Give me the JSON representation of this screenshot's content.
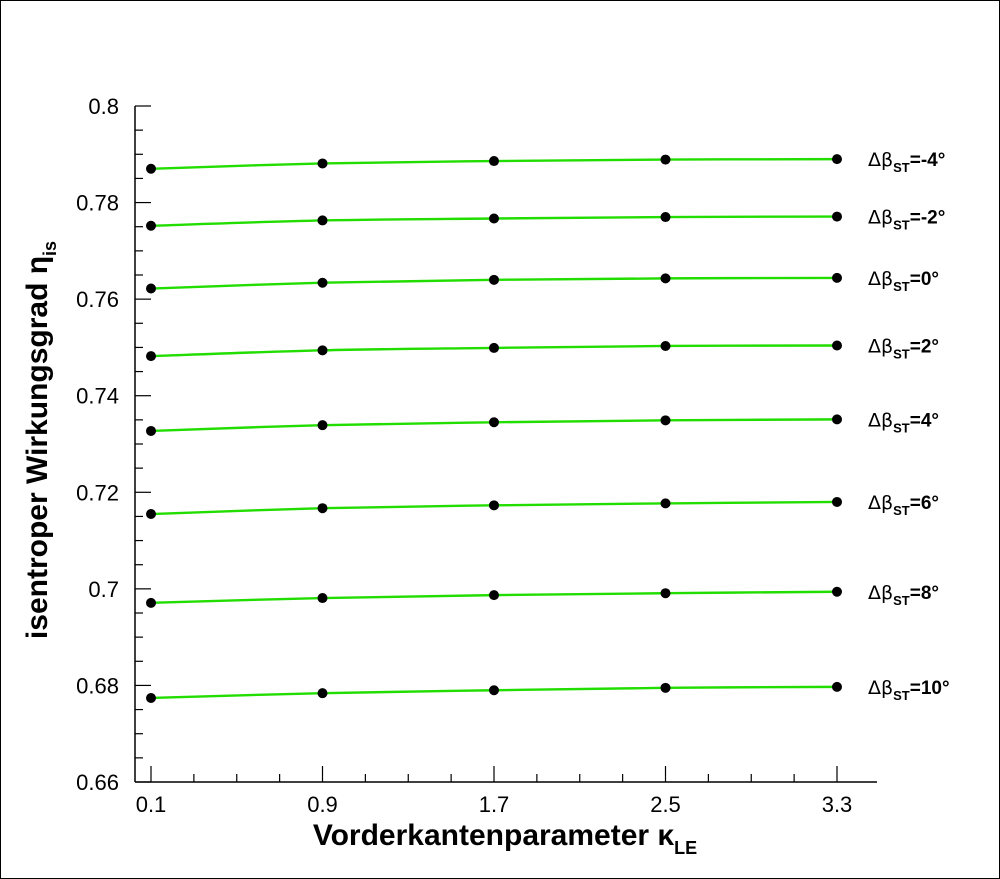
{
  "chart_data": {
    "type": "line",
    "xlabel": "Vorderkantenparameter κ",
    "xlabel_sub": "LE",
    "ylabel": "isentroper Wirkungsgrad η",
    "ylabel_sub": "is",
    "x": [
      0.1,
      0.9,
      1.7,
      2.5,
      3.3
    ],
    "x_ticks": [
      "0.1",
      "0.9",
      "1.7",
      "2.5",
      "3.3"
    ],
    "xlim": [
      0.1,
      3.3
    ],
    "ylim": [
      0.66,
      0.8
    ],
    "y_ticks": [
      "0.66",
      "0.68",
      "0.7",
      "0.72",
      "0.74",
      "0.76",
      "0.78",
      "0.8"
    ],
    "line_color": "#22dd00",
    "marker_color": "#000000",
    "series": [
      {
        "name": "Δβ",
        "name_sub": "ST",
        "name_suffix": "=-4°",
        "values": [
          0.787,
          0.7881,
          0.7886,
          0.7889,
          0.789
        ]
      },
      {
        "name": "Δβ",
        "name_sub": "ST",
        "name_suffix": "=-2°",
        "values": [
          0.7752,
          0.7763,
          0.7767,
          0.777,
          0.7771
        ]
      },
      {
        "name": "Δβ",
        "name_sub": "ST",
        "name_suffix": "=0°",
        "values": [
          0.7622,
          0.7634,
          0.764,
          0.7643,
          0.7644
        ]
      },
      {
        "name": "Δβ",
        "name_sub": "ST",
        "name_suffix": "=2°",
        "values": [
          0.7482,
          0.7494,
          0.7499,
          0.7503,
          0.7504
        ]
      },
      {
        "name": "Δβ",
        "name_sub": "ST",
        "name_suffix": "=4°",
        "values": [
          0.7327,
          0.7339,
          0.7345,
          0.7349,
          0.7351
        ]
      },
      {
        "name": "Δβ",
        "name_sub": "ST",
        "name_suffix": "=6°",
        "values": [
          0.7155,
          0.7167,
          0.7173,
          0.7177,
          0.718
        ]
      },
      {
        "name": "Δβ",
        "name_sub": "ST",
        "name_suffix": "=8°",
        "values": [
          0.6971,
          0.6981,
          0.6987,
          0.6991,
          0.6994
        ]
      },
      {
        "name": "Δβ",
        "name_sub": "ST",
        "name_suffix": "=10°",
        "values": [
          0.6774,
          0.6784,
          0.679,
          0.6795,
          0.6797
        ]
      }
    ]
  }
}
